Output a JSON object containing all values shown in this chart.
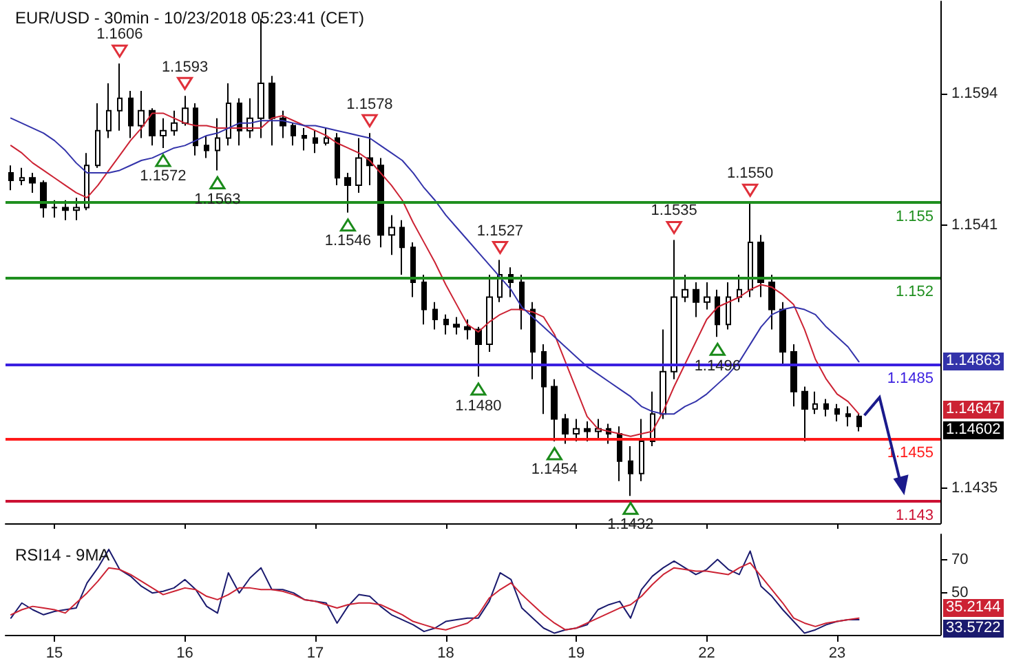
{
  "chart_data": [
    {
      "type": "candlestick",
      "title": "EUR/USD - 30min - 10/23/2018 05:23:41 (CET)",
      "color": "#000000",
      "categories": [
        null,
        null,
        null,
        null,
        "15",
        null,
        null,
        null,
        null,
        null,
        null,
        null,
        null,
        null,
        null,
        null,
        "16",
        null,
        null,
        null,
        null,
        null,
        null,
        null,
        null,
        null,
        null,
        null,
        "17",
        null,
        null,
        null,
        null,
        null,
        null,
        null,
        null,
        null,
        null,
        null,
        "18",
        null,
        null,
        null,
        null,
        null,
        null,
        null,
        null,
        null,
        null,
        null,
        "19",
        null,
        null,
        null,
        null,
        null,
        null,
        null,
        null,
        null,
        null,
        null,
        "22",
        null,
        null,
        null,
        null,
        null,
        null,
        null,
        null,
        null,
        null,
        null,
        "23",
        null,
        null,
        null,
        null,
        null,
        null,
        null,
        null,
        null
      ],
      "ohlc": [
        [
          1.1562,
          1.1565,
          1.1555,
          1.1559
        ],
        [
          1.1559,
          1.1564,
          1.1557,
          1.156
        ],
        [
          1.156,
          1.1562,
          1.1554,
          1.1558
        ],
        [
          1.1558,
          1.1559,
          1.1544,
          1.1548
        ],
        [
          1.1548,
          1.1551,
          1.1544,
          1.1548
        ],
        [
          1.1548,
          1.1551,
          1.1543,
          1.1547
        ],
        [
          1.1547,
          1.1552,
          1.1543,
          1.1548
        ],
        [
          1.1548,
          1.157,
          1.1547,
          1.1565
        ],
        [
          1.1565,
          1.159,
          1.1564,
          1.1579
        ],
        [
          1.1579,
          1.1598,
          1.1576,
          1.1587
        ],
        [
          1.1587,
          1.1606,
          1.1579,
          1.1592
        ],
        [
          1.1592,
          1.1595,
          1.1576,
          1.1581
        ],
        [
          1.1581,
          1.1595,
          1.1576,
          1.1587
        ],
        [
          1.1587,
          1.1588,
          1.1573,
          1.1577
        ],
        [
          1.1577,
          1.1584,
          1.1572,
          1.1579
        ],
        [
          1.1579,
          1.1587,
          1.1577,
          1.1582
        ],
        [
          1.1582,
          1.1593,
          1.1581,
          1.1588
        ],
        [
          1.1588,
          1.159,
          1.1569,
          1.1573
        ],
        [
          1.1573,
          1.1577,
          1.1568,
          1.1571
        ],
        [
          1.1571,
          1.1584,
          1.1563,
          1.1576
        ],
        [
          1.1576,
          1.1598,
          1.1573,
          1.159
        ],
        [
          1.159,
          1.1592,
          1.1573,
          1.1579
        ],
        [
          1.1579,
          1.1592,
          1.1576,
          1.1584
        ],
        [
          1.1584,
          1.1624,
          1.1576,
          1.1598
        ],
        [
          1.1598,
          1.1601,
          1.1573,
          1.1584
        ],
        [
          1.1584,
          1.1587,
          1.1576,
          1.1581
        ],
        [
          1.1581,
          1.1582,
          1.1573,
          1.1577
        ],
        [
          1.1577,
          1.158,
          1.1571,
          1.1576
        ],
        [
          1.1576,
          1.1579,
          1.157,
          1.1574
        ],
        [
          1.1574,
          1.158,
          1.1573,
          1.1576
        ],
        [
          1.1576,
          1.1578,
          1.1557,
          1.156
        ],
        [
          1.156,
          1.1562,
          1.1546,
          1.1557
        ],
        [
          1.1557,
          1.1576,
          1.1554,
          1.1568
        ],
        [
          1.1568,
          1.1578,
          1.1557,
          1.1565
        ],
        [
          1.1565,
          1.1568,
          1.1532,
          1.1537
        ],
        [
          1.1537,
          1.1545,
          1.1529,
          1.154
        ],
        [
          1.154,
          1.1543,
          1.1521,
          1.1532
        ],
        [
          1.1532,
          1.1534,
          1.1512,
          1.1518
        ],
        [
          1.1518,
          1.1521,
          1.1501,
          1.1507
        ],
        [
          1.1507,
          1.151,
          1.1499,
          1.1503
        ],
        [
          1.1503,
          1.1505,
          1.1497,
          1.1501
        ],
        [
          1.1501,
          1.1504,
          1.1497,
          1.15
        ],
        [
          1.15,
          1.1503,
          1.1495,
          1.1499
        ],
        [
          1.1499,
          1.15,
          1.148,
          1.1493
        ],
        [
          1.1493,
          1.1521,
          1.149,
          1.1512
        ],
        [
          1.1512,
          1.1527,
          1.151,
          1.1521
        ],
        [
          1.1521,
          1.1524,
          1.1512,
          1.1518
        ],
        [
          1.1518,
          1.1521,
          1.1499,
          1.1507
        ],
        [
          1.1507,
          1.151,
          1.1479,
          1.149
        ],
        [
          1.149,
          1.1493,
          1.1465,
          1.1476
        ],
        [
          1.1476,
          1.1479,
          1.1454,
          1.1463
        ],
        [
          1.1463,
          1.1465,
          1.1453,
          1.1457
        ],
        [
          1.1457,
          1.1463,
          1.1454,
          1.1459
        ],
        [
          1.1459,
          1.1462,
          1.1454,
          1.1458
        ],
        [
          1.1458,
          1.1463,
          1.1455,
          1.1459
        ],
        [
          1.1459,
          1.1461,
          1.1453,
          1.1457
        ],
        [
          1.1457,
          1.146,
          1.1438,
          1.1446
        ],
        [
          1.1446,
          1.1452,
          1.1432,
          1.1441
        ],
        [
          1.1441,
          1.1463,
          1.1438,
          1.1454
        ],
        [
          1.1454,
          1.1474,
          1.1452,
          1.1465
        ],
        [
          1.1465,
          1.1499,
          1.1463,
          1.1482
        ],
        [
          1.1482,
          1.1535,
          1.1479,
          1.1512
        ],
        [
          1.1512,
          1.1521,
          1.151,
          1.1515
        ],
        [
          1.1515,
          1.1518,
          1.1504,
          1.151
        ],
        [
          1.151,
          1.1518,
          1.1507,
          1.1512
        ],
        [
          1.1512,
          1.1515,
          1.1496,
          1.1501
        ],
        [
          1.1501,
          1.1518,
          1.1499,
          1.1512
        ],
        [
          1.1512,
          1.1521,
          1.151,
          1.1515
        ],
        [
          1.1515,
          1.155,
          1.1512,
          1.1534
        ],
        [
          1.1534,
          1.1537,
          1.1512,
          1.1518
        ],
        [
          1.1518,
          1.1521,
          1.1499,
          1.1507
        ],
        [
          1.1507,
          1.151,
          1.1485,
          1.149
        ],
        [
          1.149,
          1.1493,
          1.1468,
          1.1474
        ],
        [
          1.1474,
          1.1476,
          1.1454,
          1.1467
        ],
        [
          1.1467,
          1.1474,
          1.1465,
          1.1469
        ],
        [
          1.1469,
          1.1471,
          1.1464,
          1.1467
        ],
        [
          1.1467,
          1.1469,
          1.1462,
          1.1465
        ],
        [
          1.1465,
          1.1468,
          1.146,
          1.1464
        ],
        [
          1.1464,
          1.1465,
          1.1458,
          1.146
        ],
        null,
        null,
        null,
        null,
        null,
        null,
        null
      ],
      "series": [
        {
          "type": "line",
          "color": "#cc2233",
          "values": [
            1.1573,
            1.157,
            1.1566,
            1.1563,
            1.156,
            1.1557,
            1.1554,
            1.1552,
            1.1557,
            1.1563,
            1.1569,
            1.1575,
            1.158,
            1.1586,
            1.1586,
            1.1584,
            1.1582,
            1.1581,
            1.1581,
            1.158,
            1.158,
            1.158,
            1.158,
            1.158,
            1.1584,
            1.1585,
            1.1583,
            1.1581,
            1.1579,
            1.1577,
            1.1574,
            1.1572,
            1.157,
            1.1567,
            1.1562,
            1.1557,
            1.1551,
            1.1542,
            1.1534,
            1.1526,
            1.1517,
            1.1509,
            1.1501,
            1.1498,
            1.1502,
            1.1505,
            1.1507,
            1.1507,
            1.1506,
            1.1504,
            1.1497,
            1.1486,
            1.1475,
            1.1464,
            1.1459,
            1.1458,
            1.1457,
            1.1456,
            1.1457,
            1.1458,
            1.1466,
            1.1476,
            1.1485,
            1.1494,
            1.1503,
            1.1508,
            1.151,
            1.1512,
            1.1515,
            1.1517,
            1.1516,
            1.1513,
            1.1509,
            1.1499,
            1.1487,
            1.1479,
            1.1473,
            1.147,
            1.1465,
            null,
            null,
            null,
            null,
            null,
            null,
            null
          ]
        },
        {
          "type": "line",
          "color": "#3333aa",
          "values": [
            1.1584,
            1.1582,
            1.158,
            1.1578,
            1.1575,
            1.1571,
            1.1566,
            1.1562,
            1.1562,
            1.1562,
            1.1563,
            1.1565,
            1.1567,
            1.1568,
            1.157,
            1.1572,
            1.1573,
            1.1575,
            1.1577,
            1.1578,
            1.158,
            1.1582,
            1.1582,
            1.1583,
            1.1583,
            1.1583,
            1.1582,
            1.1581,
            1.1581,
            1.158,
            1.1579,
            1.1578,
            1.1577,
            1.1576,
            1.1573,
            1.157,
            1.1567,
            1.1562,
            1.1556,
            1.1551,
            1.1545,
            1.154,
            1.1535,
            1.153,
            1.1525,
            1.152,
            1.1515,
            1.1508,
            1.1504,
            1.15,
            1.1496,
            1.1492,
            1.1488,
            1.1484,
            1.1481,
            1.1478,
            1.1475,
            1.1472,
            1.1468,
            1.1466,
            1.1465,
            1.1465,
            1.1468,
            1.147,
            1.1473,
            1.1477,
            1.1481,
            1.1486,
            1.1493,
            1.15,
            1.1505,
            1.1507,
            1.1508,
            1.1507,
            1.1505,
            1.15,
            1.1496,
            1.1492,
            1.1486,
            null,
            null,
            null,
            null,
            null,
            null,
            null
          ]
        }
      ],
      "marker": "none",
      "line_style": "solid",
      "ylim": [
        1.1421,
        1.1631
      ],
      "yticks": [
        1.1594,
        1.1541,
        1.1435
      ],
      "tick_labels": "y",
      "grid": false,
      "ref_lines": [
        {
          "axis": "y",
          "value": 1.155,
          "label": "1.155",
          "color": "#1f8f1f"
        },
        {
          "axis": "y",
          "value": 1.152,
          "label": "1.152",
          "color": "#1f8f1f"
        },
        {
          "axis": "y",
          "value": 1.1485,
          "label": "1.1485",
          "color": "#3a1fe0"
        },
        {
          "axis": "y",
          "value": 1.1455,
          "label": "1.1455",
          "color": "#ff1a1a"
        },
        {
          "axis": "y",
          "value": 1.143,
          "label": "1.143",
          "color": "#cc1133"
        }
      ],
      "annotations": [
        {
          "text": "1.1606",
          "y": 1.1606
        },
        {
          "text": "1.1572",
          "y": 1.1572
        },
        {
          "text": "1.1593",
          "y": 1.1593
        },
        {
          "text": "1.1563",
          "y": 1.1563
        },
        {
          "text": "1.1546",
          "y": 1.1546
        },
        {
          "text": "1.1578",
          "y": 1.1578
        },
        {
          "text": "1.1480",
          "y": 1.148
        },
        {
          "text": "1.1527",
          "y": 1.1527
        },
        {
          "text": "1.1432",
          "y": 1.1432
        },
        {
          "text": "1.1535",
          "y": 1.1535
        },
        {
          "text": "1.1496",
          "y": 1.1496
        },
        {
          "text": "1.1550",
          "y": 1.155
        },
        {
          "text": "1.1454",
          "y": 1.1454
        },
        "1.14863",
        "1.14647",
        "1.14602"
      ]
    },
    {
      "type": "line",
      "title": "RSI14 - 9MA",
      "categories": [
        null,
        null,
        null,
        null,
        "15",
        null,
        null,
        null,
        null,
        null,
        null,
        null,
        null,
        null,
        null,
        null,
        "16",
        null,
        null,
        null,
        null,
        null,
        null,
        null,
        null,
        null,
        null,
        null,
        "17",
        null,
        null,
        null,
        null,
        null,
        null,
        null,
        null,
        null,
        null,
        null,
        "18",
        null,
        null,
        null,
        null,
        null,
        null,
        null,
        null,
        null,
        null,
        null,
        "19",
        null,
        null,
        null,
        null,
        null,
        null,
        null,
        null,
        null,
        null,
        null,
        "22",
        null,
        null,
        null,
        null,
        null,
        null,
        null,
        null,
        null,
        null,
        null,
        "23",
        null,
        null,
        null,
        null,
        null,
        null,
        null,
        null,
        null
      ],
      "series": [
        {
          "color": "#1a1a6e",
          "values": [
            35,
            44,
            40,
            37,
            39,
            40,
            41,
            56,
            65,
            76,
            64,
            60,
            54,
            50,
            51,
            53,
            58,
            52,
            42,
            38,
            62,
            50,
            59,
            65,
            52,
            52,
            50,
            46,
            45,
            44,
            32,
            42,
            49,
            48,
            42,
            37,
            34,
            31,
            27,
            29,
            33,
            34,
            35,
            35,
            45,
            62,
            58,
            41,
            35,
            29,
            26,
            28,
            29,
            31,
            40,
            43,
            45,
            35,
            52,
            60,
            65,
            69,
            65,
            61,
            64,
            70,
            64,
            61,
            75,
            54,
            48,
            40,
            33,
            26,
            28,
            31,
            33,
            34,
            34,
            null,
            null,
            null,
            null,
            null,
            null,
            null
          ]
        },
        {
          "color": "#cc2233",
          "values": [
            37,
            40,
            42,
            41,
            40,
            38,
            44,
            50,
            57,
            65,
            64,
            61,
            57,
            53,
            49,
            51,
            53,
            52,
            48,
            46,
            49,
            53,
            53,
            52,
            52,
            51,
            49,
            46,
            45,
            43,
            41,
            43,
            44,
            44,
            43,
            40,
            37,
            33,
            31,
            29,
            28,
            30,
            32,
            37,
            47,
            52,
            56,
            49,
            43,
            37,
            32,
            28,
            29,
            32,
            35,
            38,
            41,
            43,
            48,
            55,
            61,
            65,
            64,
            63,
            63,
            62,
            61,
            65,
            68,
            60,
            52,
            44,
            35,
            32,
            30,
            32,
            33,
            34,
            35,
            null,
            null,
            null,
            null,
            null,
            null,
            null
          ]
        }
      ],
      "marker": "none",
      "line_style": "solid",
      "ylim": [
        25,
        85
      ],
      "yticks": [
        50,
        70
      ],
      "grid": false,
      "annotations": [
        "35.2144",
        "33.5722"
      ]
    }
  ]
}
